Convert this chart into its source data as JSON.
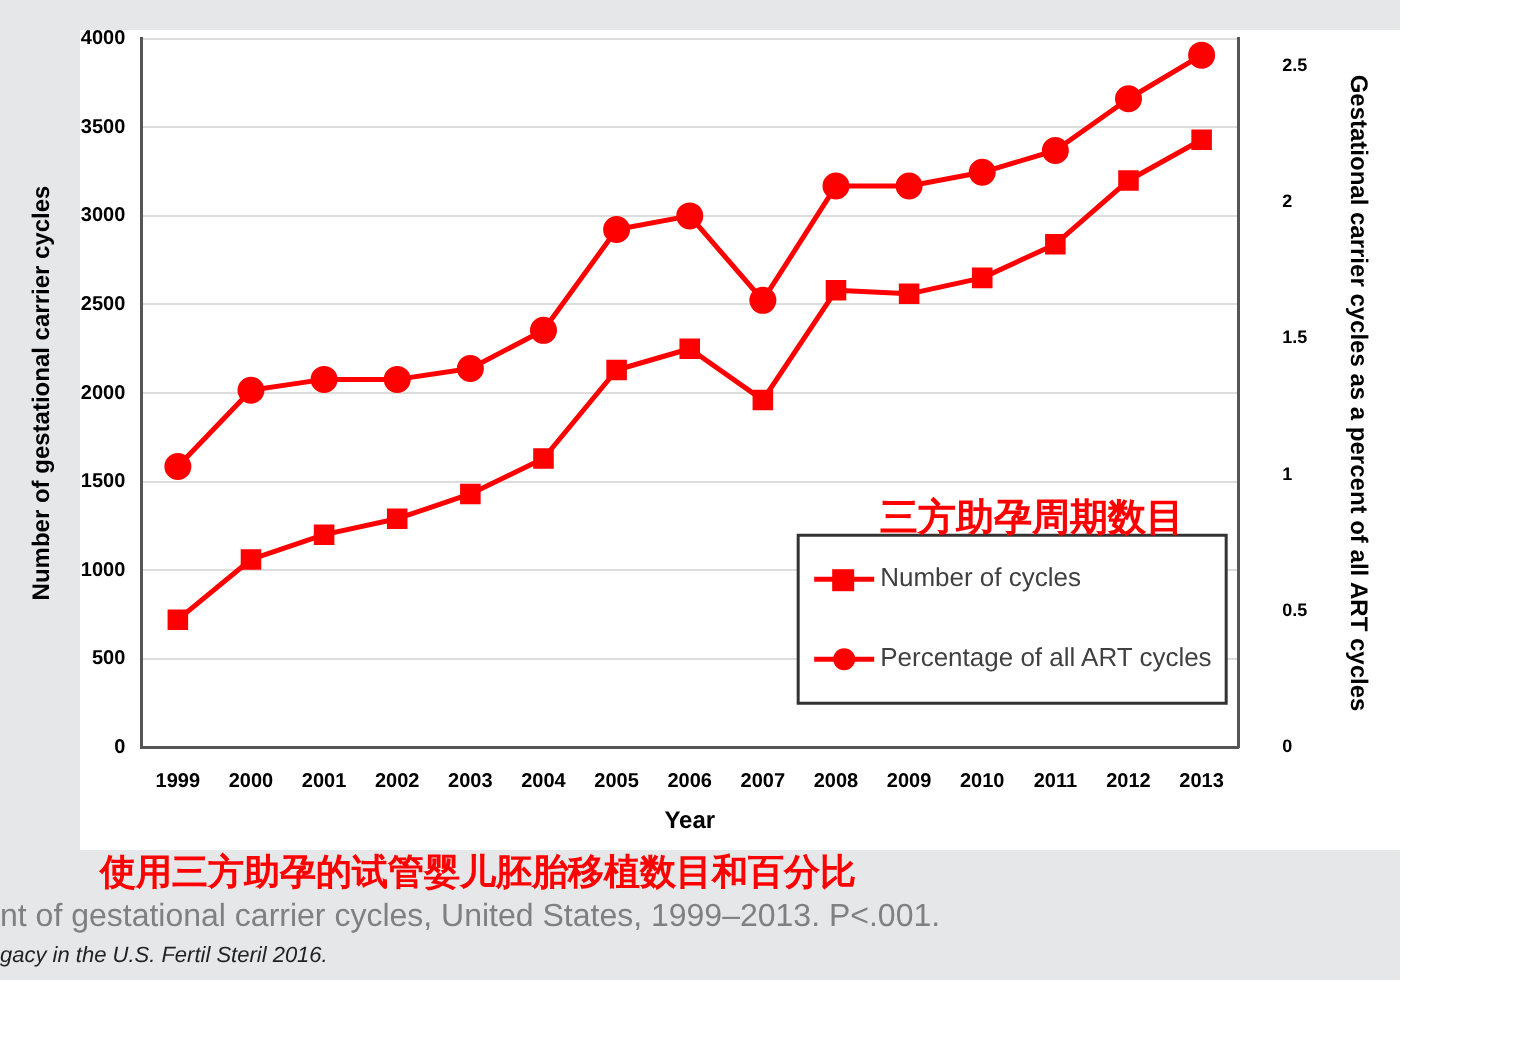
{
  "chart_data": {
    "type": "line",
    "xlabel": "Year",
    "ylabel": "Number of gestational carrier cycles",
    "y2label": "Gestational carrier cycles as a percent of all ART cycles",
    "categories": [
      "1999",
      "2000",
      "2001",
      "2002",
      "2003",
      "2004",
      "2005",
      "2006",
      "2007",
      "2008",
      "2009",
      "2010",
      "2011",
      "2012",
      "2013"
    ],
    "series": [
      {
        "name": "Number of cycles",
        "color": "#ff0000",
        "marker": "square",
        "values": [
          720,
          1060,
          1200,
          1290,
          1430,
          1630,
          2130,
          2250,
          1960,
          2580,
          2560,
          2650,
          2840,
          3200,
          3430
        ]
      },
      {
        "name": "Percentage of all ART cycles",
        "color": "#ff0000",
        "marker": "circle",
        "axis": "y2",
        "values": [
          1.03,
          1.31,
          1.35,
          1.35,
          1.39,
          1.53,
          1.9,
          1.95,
          1.64,
          2.06,
          2.06,
          2.11,
          2.19,
          2.38,
          2.54
        ]
      }
    ],
    "ylim": [
      0,
      4000
    ],
    "yticks": [
      0,
      500,
      1000,
      1500,
      2000,
      2500,
      3000,
      3500,
      4000
    ],
    "y2lim": [
      0,
      2.6
    ],
    "y2ticks": [
      0,
      0.5,
      1,
      1.5,
      2,
      2.5
    ],
    "grid": "y",
    "legend": "bottom right",
    "annotations": [
      "三方助孕周期数目",
      "使用三方助孕的试管婴儿胚胎移植数目和百分比",
      "nt of gestational carrier cycles, United States, 1999–2013. P<.001.",
      "gacy in the U.S. Fertil Steril 2016."
    ]
  }
}
